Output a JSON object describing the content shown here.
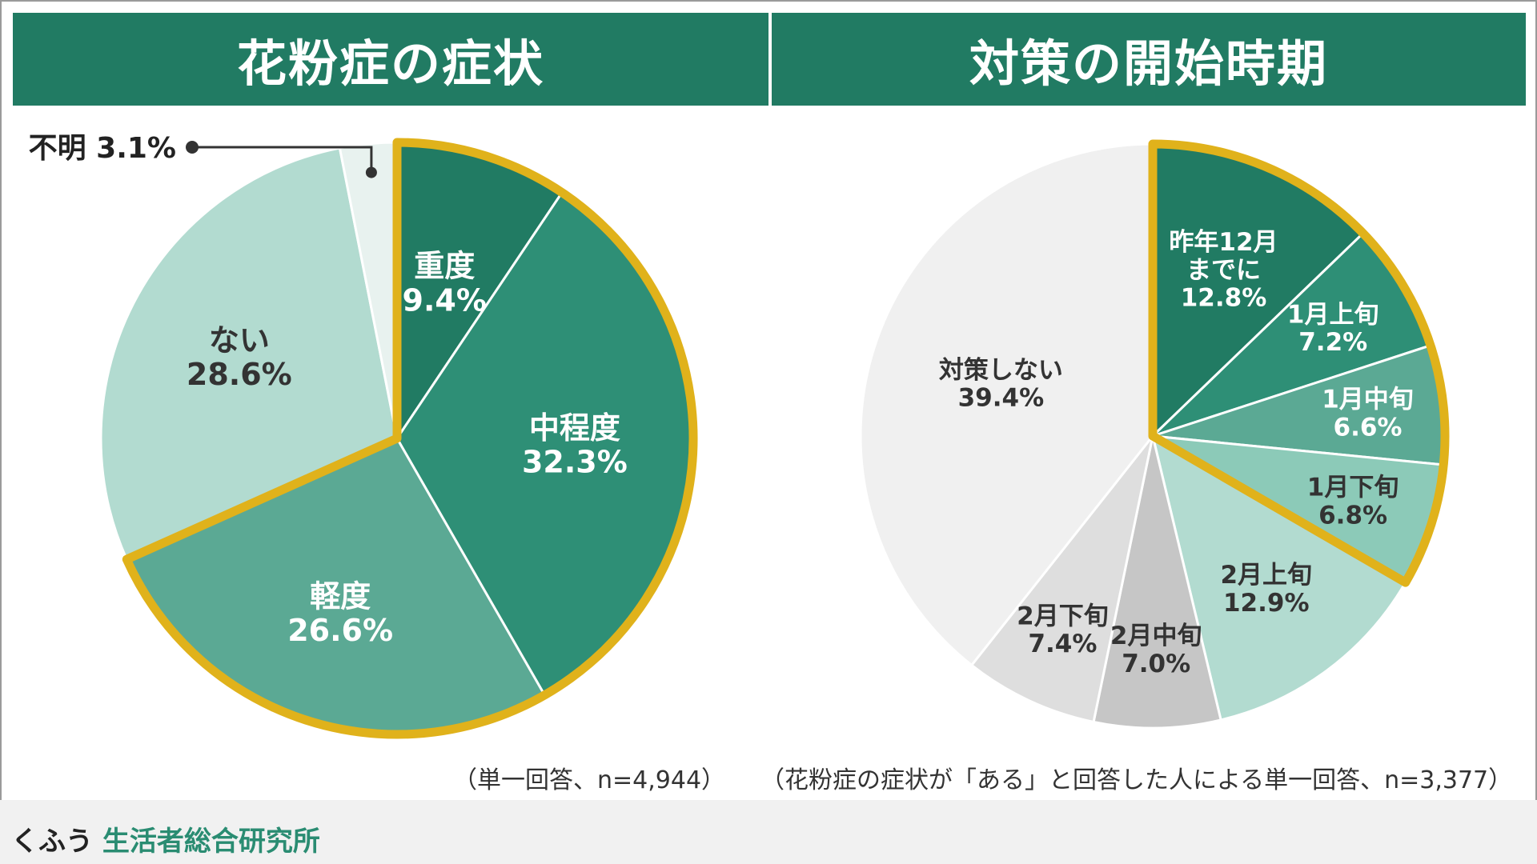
{
  "left_title": "花粉症の症状",
  "right_title": "対策の開始時期",
  "left_note": "（単一回答、n=4,944）",
  "right_note": "（花粉症の症状が「ある」と回答した人による単一回答、n=3,377）",
  "brand": {
    "prefix": "くふう",
    "name": "生活者総合研究所"
  },
  "colors": {
    "header": "#217b63",
    "highlight": "#e0b21b"
  },
  "chart_data": [
    {
      "type": "pie",
      "title": "花粉症の症状",
      "slices": [
        {
          "label": "重度",
          "value": 9.4,
          "display": "9.4%",
          "color": "#217b63",
          "text_color": "#ffffff"
        },
        {
          "label": "中程度",
          "value": 32.3,
          "display": "32.3%",
          "color": "#2e8f76",
          "text_color": "#ffffff"
        },
        {
          "label": "軽度",
          "value": 26.6,
          "display": "26.6%",
          "color": "#5ba994",
          "text_color": "#ffffff"
        },
        {
          "label": "ない",
          "value": 28.6,
          "display": "28.6%",
          "color": "#b2dbd0",
          "text_color": "#333333"
        },
        {
          "label": "不明",
          "value": 3.1,
          "display": "3.1%",
          "color": "#e8f2ef",
          "text_color": "#222222"
        }
      ],
      "highlighted": [
        "重度",
        "中程度",
        "軽度"
      ]
    },
    {
      "type": "pie",
      "title": "対策の開始時期",
      "slices": [
        {
          "label": "昨年12月までに",
          "value": 12.8,
          "display": "12.8%",
          "color": "#217b63",
          "text_color": "#ffffff"
        },
        {
          "label": "1月上旬",
          "value": 7.2,
          "display": "7.2%",
          "color": "#2e8f76",
          "text_color": "#ffffff"
        },
        {
          "label": "1月中旬",
          "value": 6.6,
          "display": "6.6%",
          "color": "#5ba994",
          "text_color": "#ffffff"
        },
        {
          "label": "1月下旬",
          "value": 6.8,
          "display": "6.8%",
          "color": "#8ccab8",
          "text_color": "#333333"
        },
        {
          "label": "2月上旬",
          "value": 12.9,
          "display": "12.9%",
          "color": "#b2dbd0",
          "text_color": "#333333"
        },
        {
          "label": "2月中旬",
          "value": 7.0,
          "display": "7.0%",
          "color": "#c6c6c6",
          "text_color": "#333333"
        },
        {
          "label": "2月下旬",
          "value": 7.4,
          "display": "7.4%",
          "color": "#dedede",
          "text_color": "#333333"
        },
        {
          "label": "対策しない",
          "value": 39.4,
          "display": "39.4%",
          "color": "#f0f0f0",
          "text_color": "#333333"
        }
      ],
      "highlighted": [
        "昨年12月までに",
        "1月上旬",
        "1月中旬",
        "1月下旬"
      ]
    }
  ]
}
